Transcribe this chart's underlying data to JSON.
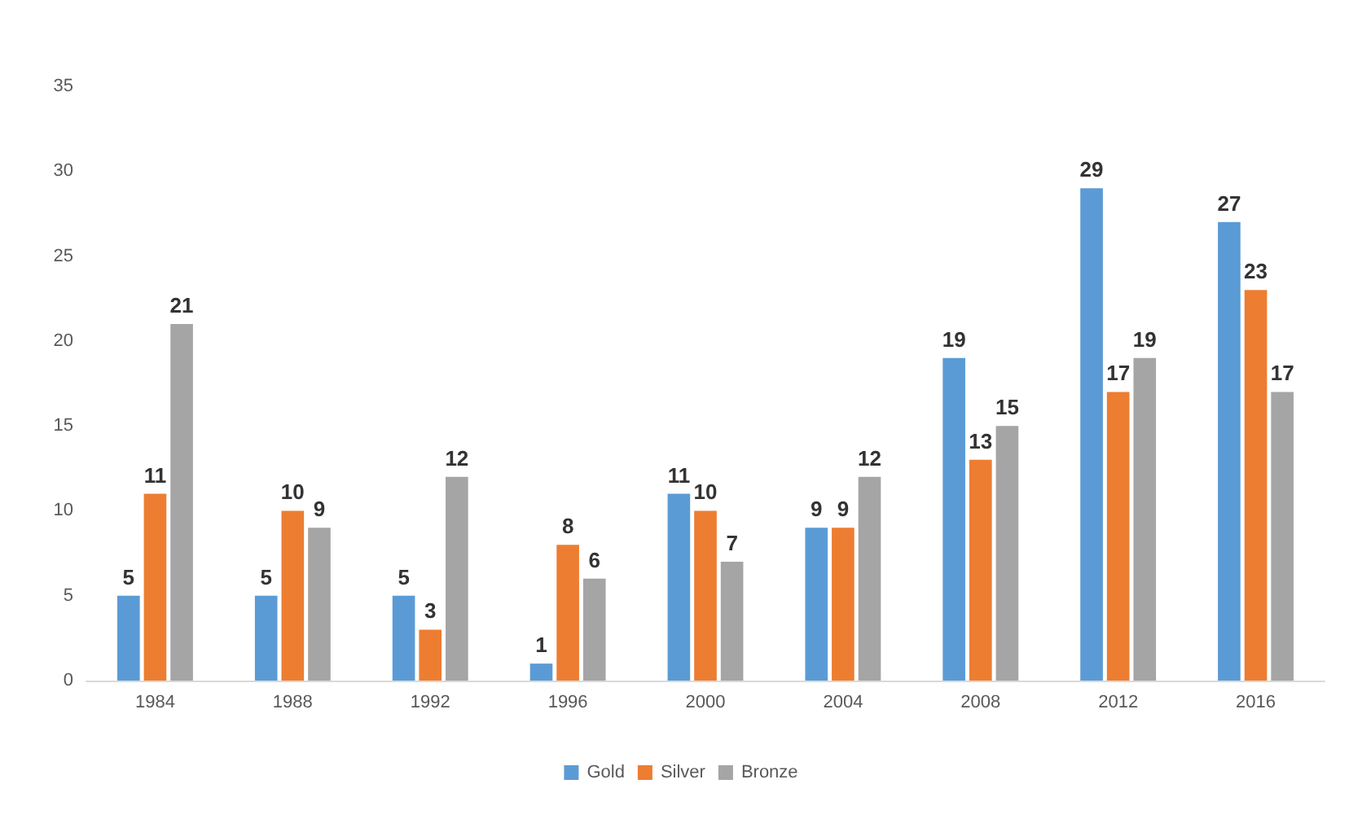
{
  "chart_data": {
    "type": "bar",
    "categories": [
      "1984",
      "1988",
      "1992",
      "1996",
      "2000",
      "2004",
      "2008",
      "2012",
      "2016"
    ],
    "series": [
      {
        "name": "Gold",
        "color": "#5b9bd5",
        "values": [
          5,
          5,
          5,
          1,
          11,
          9,
          19,
          29,
          27
        ]
      },
      {
        "name": "Silver",
        "color": "#ed7d31",
        "values": [
          11,
          10,
          3,
          8,
          10,
          9,
          13,
          17,
          23
        ]
      },
      {
        "name": "Bronze",
        "color": "#a5a5a5",
        "values": [
          21,
          9,
          12,
          6,
          7,
          12,
          15,
          19,
          17
        ]
      }
    ],
    "ylim": [
      0,
      35
    ],
    "yticks": [
      0,
      5,
      10,
      15,
      20,
      25,
      30,
      35
    ],
    "grid": false,
    "legend": "bottom",
    "data_labels": true
  }
}
